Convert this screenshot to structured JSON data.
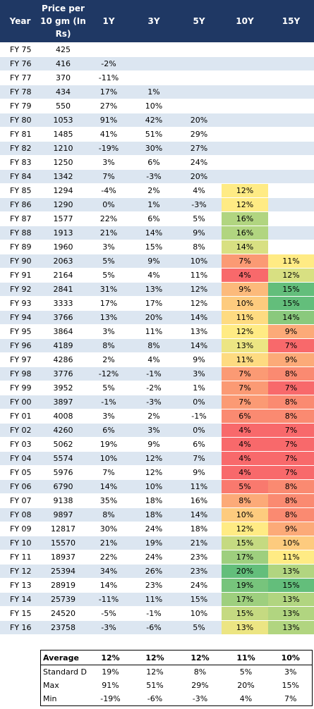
{
  "headers": [
    "Year",
    "Price per 10 gm (In Rs)",
    "1Y",
    "3Y",
    "5Y",
    "10Y",
    "15Y"
  ],
  "header_year": "Year",
  "header_price": [
    "Price per",
    "10 gm (In",
    "Rs)"
  ],
  "rows": [
    [
      "FY 75",
      "425",
      "",
      "",
      "",
      "",
      ""
    ],
    [
      "FY 76",
      "416",
      "-2%",
      "",
      "",
      "",
      ""
    ],
    [
      "FY 77",
      "370",
      "-11%",
      "",
      "",
      "",
      ""
    ],
    [
      "FY 78",
      "434",
      "17%",
      "1%",
      "",
      "",
      ""
    ],
    [
      "FY 79",
      "550",
      "27%",
      "10%",
      "",
      "",
      ""
    ],
    [
      "FY 80",
      "1053",
      "91%",
      "42%",
      "20%",
      "",
      ""
    ],
    [
      "FY 81",
      "1485",
      "41%",
      "51%",
      "29%",
      "",
      ""
    ],
    [
      "FY 82",
      "1210",
      "-19%",
      "30%",
      "27%",
      "",
      ""
    ],
    [
      "FY 83",
      "1250",
      "3%",
      "6%",
      "24%",
      "",
      ""
    ],
    [
      "FY 84",
      "1342",
      "7%",
      "-3%",
      "20%",
      "",
      ""
    ],
    [
      "FY 85",
      "1294",
      "-4%",
      "2%",
      "4%",
      "12%",
      ""
    ],
    [
      "FY 86",
      "1290",
      "0%",
      "1%",
      "-3%",
      "12%",
      ""
    ],
    [
      "FY 87",
      "1577",
      "22%",
      "6%",
      "5%",
      "16%",
      ""
    ],
    [
      "FY 88",
      "1913",
      "21%",
      "14%",
      "9%",
      "16%",
      ""
    ],
    [
      "FY 89",
      "1960",
      "3%",
      "15%",
      "8%",
      "14%",
      ""
    ],
    [
      "FY 90",
      "2063",
      "5%",
      "9%",
      "10%",
      "7%",
      "11%"
    ],
    [
      "FY 91",
      "2164",
      "5%",
      "4%",
      "11%",
      "4%",
      "12%"
    ],
    [
      "FY 92",
      "2841",
      "31%",
      "13%",
      "12%",
      "9%",
      "15%"
    ],
    [
      "FY 93",
      "3333",
      "17%",
      "17%",
      "12%",
      "10%",
      "15%"
    ],
    [
      "FY 94",
      "3766",
      "13%",
      "20%",
      "14%",
      "11%",
      "14%"
    ],
    [
      "FY 95",
      "3864",
      "3%",
      "11%",
      "13%",
      "12%",
      "9%"
    ],
    [
      "FY 96",
      "4189",
      "8%",
      "8%",
      "14%",
      "13%",
      "7%"
    ],
    [
      "FY 97",
      "4286",
      "2%",
      "4%",
      "9%",
      "11%",
      "9%"
    ],
    [
      "FY 98",
      "3776",
      "-12%",
      "-1%",
      "3%",
      "7%",
      "8%"
    ],
    [
      "FY 99",
      "3952",
      "5%",
      "-2%",
      "1%",
      "7%",
      "7%"
    ],
    [
      "FY 00",
      "3897",
      "-1%",
      "-3%",
      "0%",
      "7%",
      "8%"
    ],
    [
      "FY 01",
      "4008",
      "3%",
      "2%",
      "-1%",
      "6%",
      "8%"
    ],
    [
      "FY 02",
      "4260",
      "6%",
      "3%",
      "0%",
      "4%",
      "7%"
    ],
    [
      "FY 03",
      "5062",
      "19%",
      "9%",
      "6%",
      "4%",
      "7%"
    ],
    [
      "FY 04",
      "5574",
      "10%",
      "12%",
      "7%",
      "4%",
      "7%"
    ],
    [
      "FY 05",
      "5976",
      "7%",
      "12%",
      "9%",
      "4%",
      "7%"
    ],
    [
      "FY 06",
      "6790",
      "14%",
      "10%",
      "11%",
      "5%",
      "8%"
    ],
    [
      "FY 07",
      "9138",
      "35%",
      "18%",
      "16%",
      "8%",
      "8%"
    ],
    [
      "FY 08",
      "9897",
      "8%",
      "18%",
      "14%",
      "10%",
      "8%"
    ],
    [
      "FY 09",
      "12817",
      "30%",
      "24%",
      "18%",
      "12%",
      "9%"
    ],
    [
      "FY 10",
      "15570",
      "21%",
      "19%",
      "21%",
      "15%",
      "10%"
    ],
    [
      "FY 11",
      "18937",
      "22%",
      "24%",
      "23%",
      "17%",
      "11%"
    ],
    [
      "FY 12",
      "25394",
      "34%",
      "26%",
      "23%",
      "20%",
      "13%"
    ],
    [
      "FY 13",
      "28919",
      "14%",
      "23%",
      "24%",
      "19%",
      "15%"
    ],
    [
      "FY 14",
      "25739",
      "-11%",
      "11%",
      "15%",
      "17%",
      "13%"
    ],
    [
      "FY 15",
      "24520",
      "-5%",
      "-1%",
      "10%",
      "15%",
      "13%"
    ],
    [
      "FY 16",
      "23758",
      "-3%",
      "-6%",
      "5%",
      "13%",
      "13%"
    ]
  ],
  "colors": {
    "header_bg": "#1f3864",
    "row_alt": "#dce6f1",
    "scale_low": "#f8696b",
    "scale_mid": "#ffeb84",
    "scale_high": "#63be7b"
  },
  "stats": [
    [
      "Average",
      "12%",
      "12%",
      "12%",
      "11%",
      "10%"
    ],
    [
      "Standard D",
      "19%",
      "12%",
      "8%",
      "5%",
      "3%"
    ],
    [
      "Max",
      "91%",
      "51%",
      "29%",
      "20%",
      "15%"
    ],
    [
      "Min",
      "-19%",
      "-6%",
      "-3%",
      "4%",
      "7%"
    ]
  ]
}
